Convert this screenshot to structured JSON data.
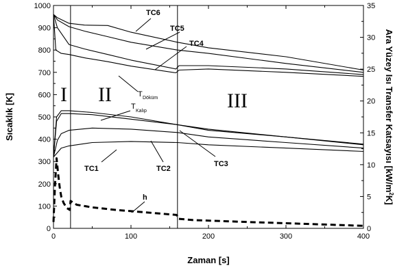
{
  "chart_data": {
    "type": "line",
    "xlabel": "Zaman [s]",
    "ylabel_left": "Sıcaklık [K]",
    "ylabel_right_main": "Ara Yüzey Isı Transfer Katsayısı [kW/m",
    "ylabel_right_sup": "2",
    "ylabel_right_end": "K]",
    "xlim": [
      0,
      400
    ],
    "ylim_left": [
      0,
      1000
    ],
    "ylim_right": [
      0,
      35
    ],
    "x_ticks": [
      "0",
      "100",
      "200",
      "300",
      "400"
    ],
    "y_left_ticks": [
      "0",
      "100",
      "200",
      "300",
      "400",
      "500",
      "600",
      "700",
      "800",
      "900",
      "1000"
    ],
    "y_right_ticks": [
      "0",
      "5",
      "10",
      "15",
      "20",
      "25",
      "30",
      "35"
    ],
    "region_boundaries": [
      22,
      160
    ],
    "regions": [
      "I",
      "II",
      "III"
    ],
    "annotations": {
      "tc6": "TC6",
      "tc5": "TC5",
      "tc4": "TC4",
      "tc3": "TC3",
      "tc2": "TC2",
      "tc1": "TC1",
      "h": "h",
      "t_dokum_main": "T",
      "t_dokum_sub": "Döküm",
      "t_kalip_main": "T",
      "t_kalip_sub": "Kalıp"
    },
    "series": [
      {
        "name": "TC6",
        "axis": "left",
        "x": [
          0,
          5,
          20,
          40,
          70,
          100,
          160,
          200,
          300,
          400
        ],
        "y": [
          960,
          945,
          920,
          912,
          910,
          880,
          835,
          810,
          770,
          710
        ]
      },
      {
        "name": "TC5",
        "axis": "left",
        "x": [
          0,
          5,
          20,
          40,
          70,
          100,
          160,
          200,
          300,
          400
        ],
        "y": [
          960,
          935,
          905,
          885,
          860,
          835,
          800,
          785,
          740,
          700
        ]
      },
      {
        "name": "TC4",
        "axis": "left",
        "x": [
          0,
          5,
          20,
          40,
          70,
          100,
          158,
          162,
          200,
          300,
          400
        ],
        "y": [
          960,
          900,
          825,
          805,
          780,
          755,
          715,
          730,
          730,
          715,
          690
        ]
      },
      {
        "name": "T Döküm",
        "axis": "left",
        "x": [
          0,
          3,
          10,
          20,
          40,
          70,
          100,
          158,
          162,
          200,
          300,
          400
        ],
        "y": [
          960,
          800,
          785,
          780,
          765,
          748,
          728,
          698,
          710,
          715,
          700,
          682
        ]
      },
      {
        "name": "T Kalıp",
        "axis": "left",
        "x": [
          0,
          4,
          10,
          20,
          50,
          100,
          160,
          200,
          300,
          400
        ],
        "y": [
          320,
          500,
          528,
          528,
          520,
          500,
          465,
          445,
          410,
          375
        ]
      },
      {
        "name": "TC3",
        "axis": "left",
        "x": [
          0,
          4,
          10,
          20,
          50,
          100,
          160,
          200,
          300,
          400
        ],
        "y": [
          320,
          480,
          515,
          515,
          510,
          490,
          465,
          440,
          410,
          378
        ]
      },
      {
        "name": "TC2",
        "axis": "left",
        "x": [
          0,
          5,
          10,
          20,
          50,
          100,
          160,
          200,
          300,
          400
        ],
        "y": [
          320,
          395,
          425,
          440,
          450,
          445,
          430,
          410,
          385,
          360
        ]
      },
      {
        "name": "TC1",
        "axis": "left",
        "x": [
          0,
          5,
          10,
          20,
          50,
          100,
          160,
          200,
          300,
          400
        ],
        "y": [
          320,
          340,
          360,
          370,
          385,
          390,
          385,
          375,
          360,
          345
        ]
      },
      {
        "name": "h",
        "axis": "right",
        "x": [
          0,
          2,
          4,
          6,
          8,
          10,
          13,
          17,
          21,
          22,
          30,
          50,
          80,
          120,
          159,
          160,
          161,
          180,
          250,
          300,
          350,
          400
        ],
        "y": [
          1,
          7,
          11,
          8.5,
          6.5,
          5,
          4,
          3.2,
          2.9,
          4.3,
          3.7,
          3.3,
          2.9,
          2.5,
          2.1,
          1.8,
          1.5,
          1.3,
          1.0,
          0.8,
          0.6,
          0.4
        ]
      }
    ]
  }
}
